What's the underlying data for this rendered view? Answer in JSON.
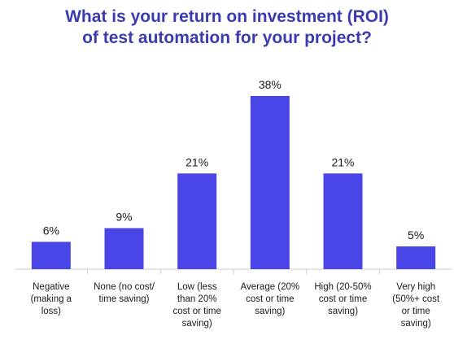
{
  "title_lines": [
    "What is your return on investment (ROI)",
    "of test automation for your project?"
  ],
  "colors": {
    "bar": "#4a45e6",
    "title": "#3b3bb0",
    "axis": "#cccccc",
    "text": "#1a1a1a"
  },
  "chart_data": {
    "type": "bar",
    "title": "What is your return on investment (ROI) of test automation for your project?",
    "xlabel": "",
    "ylabel": "",
    "ylim": [
      0,
      38
    ],
    "grid": false,
    "legend": "none",
    "categories": [
      "Negative (making a loss)",
      "None (no cost/ time saving)",
      "Low (less than 20% cost or time saving)",
      "Average (20% cost or time saving)",
      "High (20-50% cost or time saving)",
      "Very high (50%+ cost or time saving)"
    ],
    "category_lines": [
      [
        "Negative",
        "(making a",
        "loss)"
      ],
      [
        "None (no cost/",
        "time saving)"
      ],
      [
        "Low (less",
        "than 20%",
        "cost or time",
        "saving)"
      ],
      [
        "Average (20%",
        "cost or time",
        "saving)"
      ],
      [
        "High (20-50%",
        "cost or time",
        "saving)"
      ],
      [
        "Very high",
        "(50%+ cost",
        "or time",
        "saving)"
      ]
    ],
    "values": [
      6,
      9,
      21,
      38,
      21,
      5
    ],
    "data_labels": [
      "6%",
      "9%",
      "21%",
      "38%",
      "21%",
      "5%"
    ]
  }
}
